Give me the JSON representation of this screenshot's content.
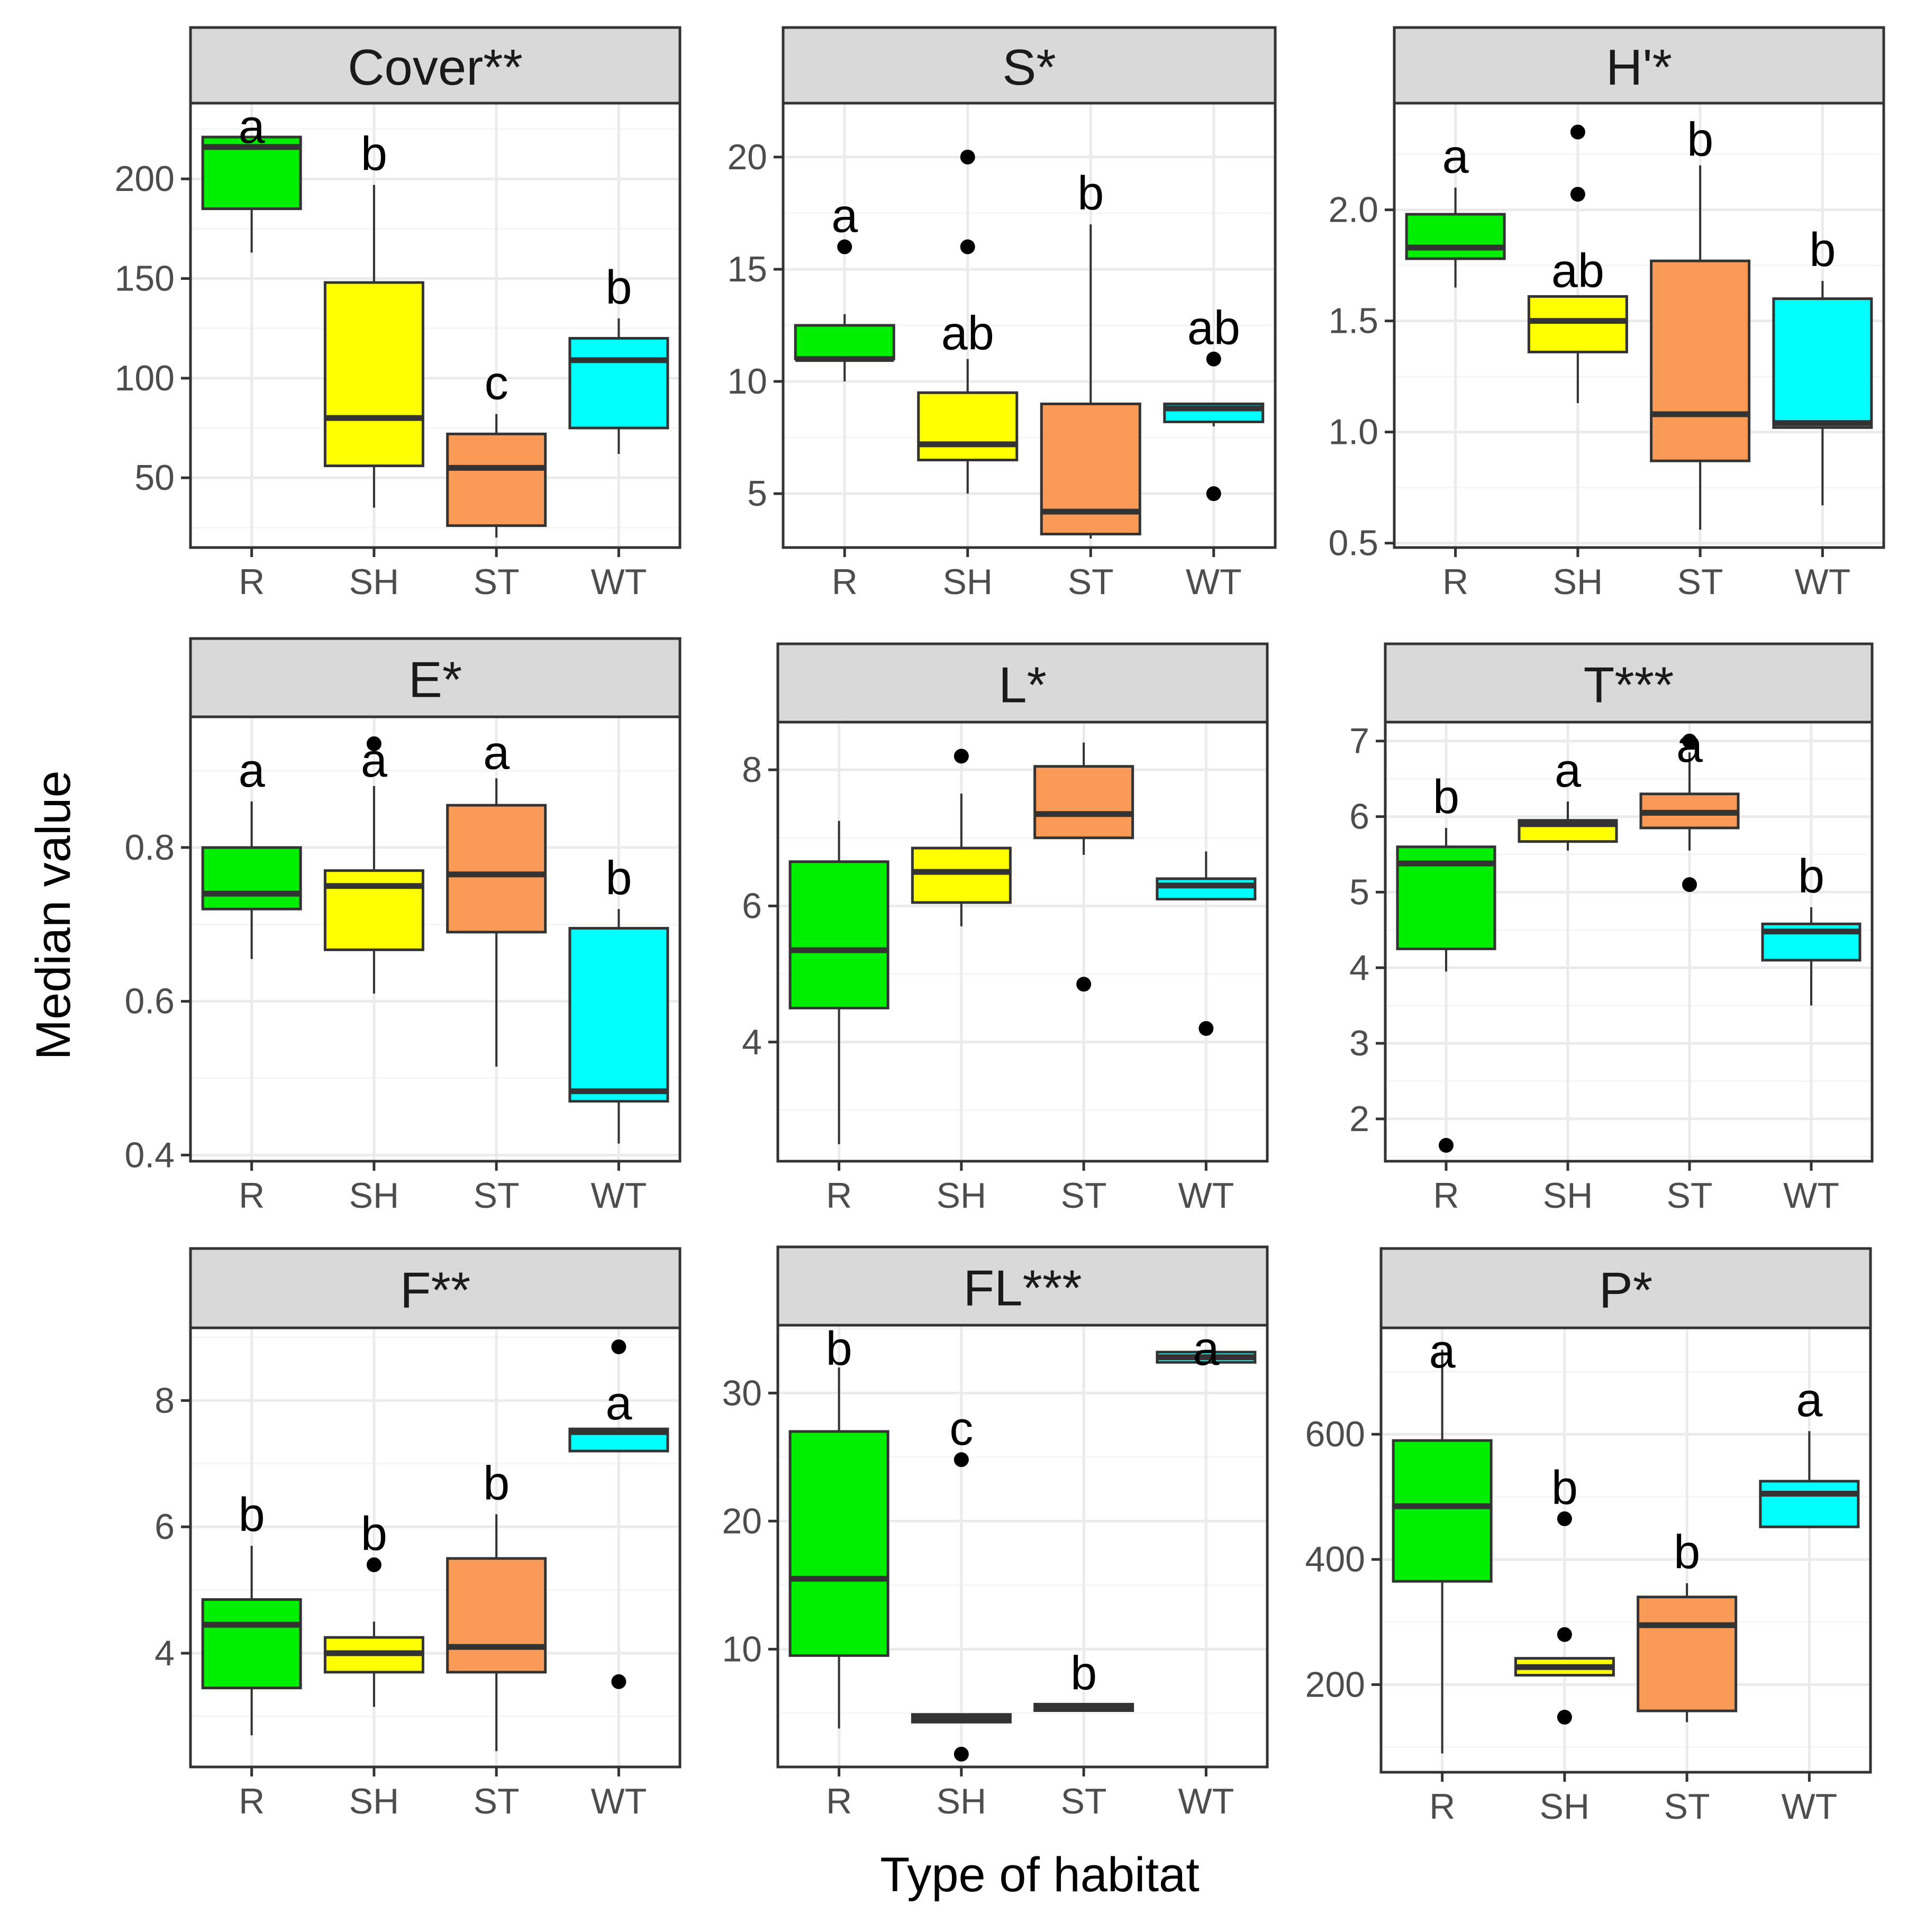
{
  "colors": {
    "R": "#00EE00",
    "SH": "#FFFF00",
    "ST": "#F99A56",
    "WT": "#00FFFF",
    "strip_fill": "#D9D9D9",
    "panel_border": "#333333",
    "grid_major": "#EBEBEB",
    "grid_minor": "#F5F5F5",
    "outlier": "#000000"
  },
  "chart_data": {
    "type": "box",
    "xlabel": "Type of habitat",
    "ylabel": "Median value",
    "categories": [
      "R",
      "SH",
      "ST",
      "WT"
    ],
    "panels": [
      {
        "title": "Cover**",
        "ylim": [
          15,
          238
        ],
        "yticks": [
          50,
          100,
          150,
          200
        ],
        "tick_labels": [
          "50",
          "100",
          "150",
          "200"
        ],
        "boxes": [
          {
            "group": "R",
            "min": 163,
            "q1": 185,
            "median": 216,
            "q3": 221,
            "max": 221,
            "outliers": [],
            "letter": "a"
          },
          {
            "group": "SH",
            "min": 35,
            "q1": 56,
            "median": 80,
            "q3": 148,
            "max": 197,
            "outliers": [],
            "letter": "b"
          },
          {
            "group": "ST",
            "min": 20,
            "q1": 26,
            "median": 55,
            "q3": 72,
            "max": 82,
            "outliers": [],
            "letter": "c"
          },
          {
            "group": "WT",
            "min": 62,
            "q1": 75,
            "median": 109,
            "q3": 120,
            "max": 130,
            "outliers": [],
            "letter": "b"
          }
        ]
      },
      {
        "title": "S*",
        "ylim": [
          2.6,
          22.4
        ],
        "yticks": [
          5,
          10,
          15,
          20
        ],
        "tick_labels": [
          "5",
          "10",
          "15",
          "20"
        ],
        "boxes": [
          {
            "group": "R",
            "min": 10,
            "q1": 11,
            "median": 11,
            "q3": 12.5,
            "max": 13,
            "outliers": [
              16
            ],
            "letter": "a"
          },
          {
            "group": "SH",
            "min": 5,
            "q1": 6.5,
            "median": 7.2,
            "q3": 9.5,
            "max": 11,
            "outliers": [
              16,
              20
            ],
            "letter": "ab"
          },
          {
            "group": "ST",
            "min": 3,
            "q1": 3.2,
            "median": 4.2,
            "q3": 9,
            "max": 17,
            "outliers": [],
            "letter": "b"
          },
          {
            "group": "WT",
            "min": 8,
            "q1": 8.2,
            "median": 8.8,
            "q3": 9,
            "max": 9,
            "outliers": [
              11,
              5
            ],
            "letter": "ab"
          }
        ]
      },
      {
        "title": "H'*",
        "ylim": [
          0.48,
          2.48
        ],
        "yticks": [
          0.5,
          1.0,
          1.5,
          2.0
        ],
        "tick_labels": [
          "0.5",
          "1.0",
          "1.5",
          "2.0"
        ],
        "boxes": [
          {
            "group": "R",
            "min": 1.65,
            "q1": 1.78,
            "median": 1.83,
            "q3": 1.98,
            "max": 2.1,
            "outliers": [],
            "letter": "a"
          },
          {
            "group": "SH",
            "min": 1.13,
            "q1": 1.36,
            "median": 1.5,
            "q3": 1.61,
            "max": 1.61,
            "outliers": [
              2.07,
              2.35
            ],
            "letter": "ab"
          },
          {
            "group": "ST",
            "min": 0.56,
            "q1": 0.87,
            "median": 1.08,
            "q3": 1.77,
            "max": 2.2,
            "outliers": [],
            "letter": "b"
          },
          {
            "group": "WT",
            "min": 0.67,
            "q1": 1.02,
            "median": 1.04,
            "q3": 1.6,
            "max": 1.68,
            "outliers": [],
            "letter": "b"
          }
        ]
      },
      {
        "title": "E*",
        "ylim": [
          0.392,
          0.97
        ],
        "yticks": [
          0.4,
          0.6,
          0.8
        ],
        "tick_labels": [
          "0.4",
          "0.6",
          "0.8"
        ],
        "boxes": [
          {
            "group": "R",
            "min": 0.655,
            "q1": 0.72,
            "median": 0.74,
            "q3": 0.8,
            "max": 0.86,
            "outliers": [],
            "letter": "a"
          },
          {
            "group": "SH",
            "min": 0.61,
            "q1": 0.667,
            "median": 0.75,
            "q3": 0.77,
            "max": 0.88,
            "outliers": [
              0.935
            ],
            "letter": "a"
          },
          {
            "group": "ST",
            "min": 0.515,
            "q1": 0.69,
            "median": 0.765,
            "q3": 0.855,
            "max": 0.89,
            "outliers": [],
            "letter": "a"
          },
          {
            "group": "WT",
            "min": 0.415,
            "q1": 0.47,
            "median": 0.483,
            "q3": 0.695,
            "max": 0.72,
            "outliers": [],
            "letter": "b"
          }
        ]
      },
      {
        "title": "L*",
        "ylim": [
          2.25,
          8.7
        ],
        "yticks": [
          4,
          6,
          8
        ],
        "tick_labels": [
          "4",
          "6",
          "8"
        ],
        "boxes": [
          {
            "group": "R",
            "min": 2.5,
            "q1": 4.5,
            "median": 5.35,
            "q3": 6.65,
            "max": 7.25,
            "outliers": [],
            "letter": ""
          },
          {
            "group": "SH",
            "min": 5.7,
            "q1": 6.05,
            "median": 6.5,
            "q3": 6.85,
            "max": 7.65,
            "outliers": [
              8.2
            ],
            "letter": ""
          },
          {
            "group": "ST",
            "min": 6.75,
            "q1": 7.0,
            "median": 7.35,
            "q3": 8.05,
            "max": 8.4,
            "outliers": [
              4.85
            ],
            "letter": ""
          },
          {
            "group": "WT",
            "min": 6.1,
            "q1": 6.1,
            "median": 6.3,
            "q3": 6.4,
            "max": 6.8,
            "outliers": [
              4.2
            ],
            "letter": ""
          }
        ]
      },
      {
        "title": "T***",
        "ylim": [
          1.44,
          7.25
        ],
        "yticks": [
          2,
          3,
          4,
          5,
          6,
          7
        ],
        "tick_labels": [
          "2",
          "3",
          "4",
          "5",
          "6",
          "7"
        ],
        "boxes": [
          {
            "group": "R",
            "min": 3.95,
            "q1": 4.25,
            "median": 5.38,
            "q3": 5.6,
            "max": 5.85,
            "outliers": [
              1.65
            ],
            "letter": "b"
          },
          {
            "group": "SH",
            "min": 5.55,
            "q1": 5.67,
            "median": 5.9,
            "q3": 5.95,
            "max": 6.2,
            "outliers": [],
            "letter": "a"
          },
          {
            "group": "ST",
            "min": 5.55,
            "q1": 5.85,
            "median": 6.05,
            "q3": 6.3,
            "max": 6.85,
            "outliers": [
              7.0,
              5.1
            ],
            "letter": "a"
          },
          {
            "group": "WT",
            "min": 3.5,
            "q1": 4.1,
            "median": 4.48,
            "q3": 4.58,
            "max": 4.8,
            "outliers": [],
            "letter": "b"
          }
        ]
      },
      {
        "title": "F**",
        "ylim": [
          2.2,
          9.15
        ],
        "yticks": [
          4,
          6,
          8
        ],
        "tick_labels": [
          "4",
          "6",
          "8"
        ],
        "boxes": [
          {
            "group": "R",
            "min": 2.7,
            "q1": 3.45,
            "median": 4.45,
            "q3": 4.85,
            "max": 5.7,
            "outliers": [],
            "letter": "b"
          },
          {
            "group": "SH",
            "min": 3.15,
            "q1": 3.7,
            "median": 4.0,
            "q3": 4.25,
            "max": 4.5,
            "outliers": [
              5.4
            ],
            "letter": "b"
          },
          {
            "group": "ST",
            "min": 2.45,
            "q1": 3.7,
            "median": 4.1,
            "q3": 5.5,
            "max": 6.2,
            "outliers": [],
            "letter": "b"
          },
          {
            "group": "WT",
            "min": 7.2,
            "q1": 7.2,
            "median": 7.5,
            "q3": 7.55,
            "max": 7.55,
            "outliers": [
              8.85,
              3.55
            ],
            "letter": "a"
          }
        ]
      },
      {
        "title": "FL***",
        "ylim": [
          0.8,
          35.3
        ],
        "yticks": [
          10,
          20,
          30
        ],
        "tick_labels": [
          "10",
          "20",
          "30"
        ],
        "boxes": [
          {
            "group": "R",
            "min": 3.8,
            "q1": 9.5,
            "median": 15.5,
            "q3": 27,
            "max": 32,
            "outliers": [],
            "letter": "b"
          },
          {
            "group": "SH",
            "min": 4.3,
            "q1": 4.3,
            "median": 4.6,
            "q3": 4.9,
            "max": 4.9,
            "outliers": [
              24.8,
              1.8
            ],
            "letter": "c"
          },
          {
            "group": "ST",
            "min": 5.2,
            "q1": 5.2,
            "median": 5.45,
            "q3": 5.7,
            "max": 5.7,
            "outliers": [],
            "letter": "b"
          },
          {
            "group": "WT",
            "min": 32.4,
            "q1": 32.4,
            "median": 32.8,
            "q3": 33.2,
            "max": 33.2,
            "outliers": [],
            "letter": "a"
          }
        ]
      },
      {
        "title": "P*",
        "ylim": [
          60,
          770
        ],
        "yticks": [
          200,
          400,
          600
        ],
        "tick_labels": [
          "200",
          "400",
          "600"
        ],
        "boxes": [
          {
            "group": "R",
            "min": 90,
            "q1": 365,
            "median": 485,
            "q3": 590,
            "max": 735,
            "outliers": [],
            "letter": "a"
          },
          {
            "group": "SH",
            "min": 215,
            "q1": 215,
            "median": 228,
            "q3": 242,
            "max": 242,
            "outliers": [
              465,
              280,
              148
            ],
            "letter": "b"
          },
          {
            "group": "ST",
            "min": 140,
            "q1": 158,
            "median": 295,
            "q3": 340,
            "max": 362,
            "outliers": [],
            "letter": "b"
          },
          {
            "group": "WT",
            "min": 450,
            "q1": 452,
            "median": 505,
            "q3": 525,
            "max": 605,
            "outliers": [],
            "letter": "a"
          }
        ]
      }
    ]
  }
}
